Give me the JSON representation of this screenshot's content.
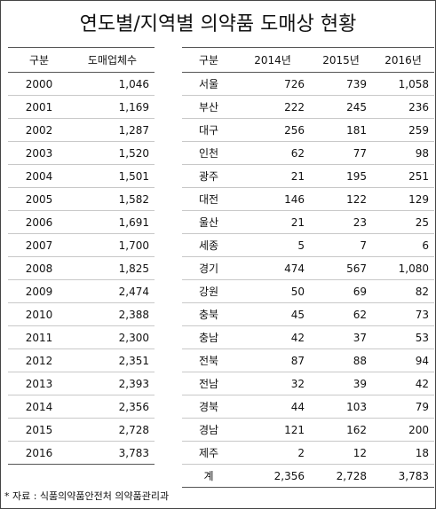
{
  "title": "연도별/지역별 의약품 도매상 현황",
  "left_table": {
    "header": [
      "구분",
      "도매업체수"
    ],
    "rows": [
      [
        "2000",
        "1,046"
      ],
      [
        "2001",
        "1,169"
      ],
      [
        "2002",
        "1,287"
      ],
      [
        "2003",
        "1,520"
      ],
      [
        "2004",
        "1,501"
      ],
      [
        "2005",
        "1,582"
      ],
      [
        "2006",
        "1,691"
      ],
      [
        "2007",
        "1,700"
      ],
      [
        "2008",
        "1,825"
      ],
      [
        "2009",
        "2,474"
      ],
      [
        "2010",
        "2,388"
      ],
      [
        "2011",
        "2,300"
      ],
      [
        "2012",
        "2,351"
      ],
      [
        "2013",
        "2,393"
      ],
      [
        "2014",
        "2,356"
      ],
      [
        "2015",
        "2,728"
      ],
      [
        "2016",
        "3,783"
      ]
    ]
  },
  "right_table": {
    "header": [
      "구분",
      "2014년",
      "2015년",
      "2016년"
    ],
    "rows": [
      [
        "서울",
        "726",
        "739",
        "1,058"
      ],
      [
        "부산",
        "222",
        "245",
        "236"
      ],
      [
        "대구",
        "256",
        "181",
        "259"
      ],
      [
        "인천",
        "62",
        "77",
        "98"
      ],
      [
        "광주",
        "21",
        "195",
        "251"
      ],
      [
        "대전",
        "146",
        "122",
        "129"
      ],
      [
        "울산",
        "21",
        "23",
        "25"
      ],
      [
        "세종",
        "5",
        "7",
        "6"
      ],
      [
        "경기",
        "474",
        "567",
        "1,080"
      ],
      [
        "강원",
        "50",
        "69",
        "82"
      ],
      [
        "충북",
        "45",
        "62",
        "73"
      ],
      [
        "충남",
        "42",
        "37",
        "53"
      ],
      [
        "전북",
        "87",
        "88",
        "94"
      ],
      [
        "전남",
        "32",
        "39",
        "42"
      ],
      [
        "경북",
        "44",
        "103",
        "79"
      ],
      [
        "경남",
        "121",
        "162",
        "200"
      ],
      [
        "제주",
        "2",
        "12",
        "18"
      ],
      [
        "계",
        "2,356",
        "2,728",
        "3,783"
      ]
    ]
  },
  "footnote": "* 자료 : 식품의약품안전처 의약품관리과"
}
